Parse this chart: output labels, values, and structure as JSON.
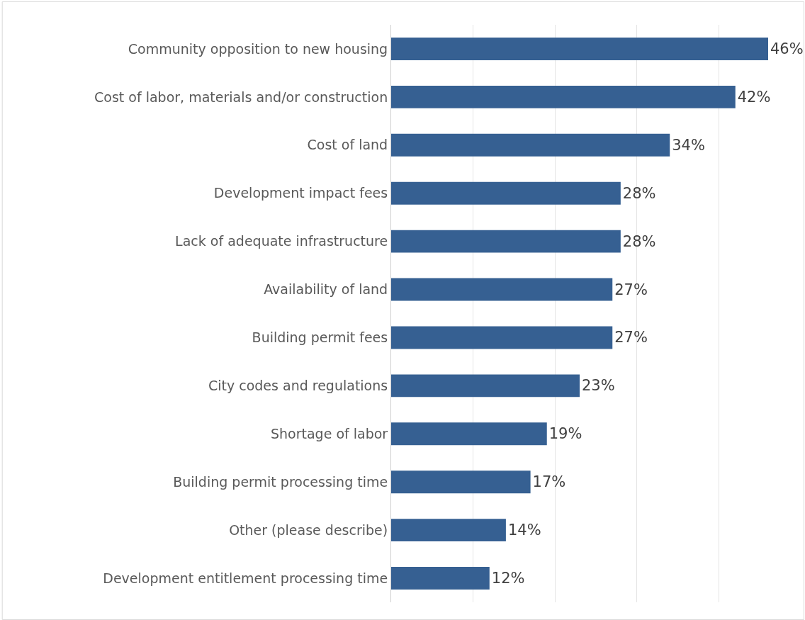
{
  "chart_data": {
    "type": "bar",
    "orientation": "horizontal",
    "categories": [
      "Community opposition to new housing",
      "Cost of labor, materials and/or construction",
      "Cost of land",
      "Development impact fees",
      "Lack of adequate infrastructure",
      "Availability of land",
      "Building permit fees",
      "City codes and regulations",
      "Shortage of labor",
      "Building permit processing time",
      "Other (please describe)",
      "Development entitlement processing time"
    ],
    "values": [
      46,
      42,
      34,
      28,
      28,
      27,
      27,
      23,
      19,
      17,
      14,
      12
    ],
    "value_labels": [
      "46%",
      "42%",
      "34%",
      "28%",
      "28%",
      "27%",
      "27%",
      "23%",
      "19%",
      "17%",
      "14%",
      "12%"
    ],
    "color": "#366092",
    "grid": "x",
    "tick_labels": "y",
    "legend": false
  }
}
